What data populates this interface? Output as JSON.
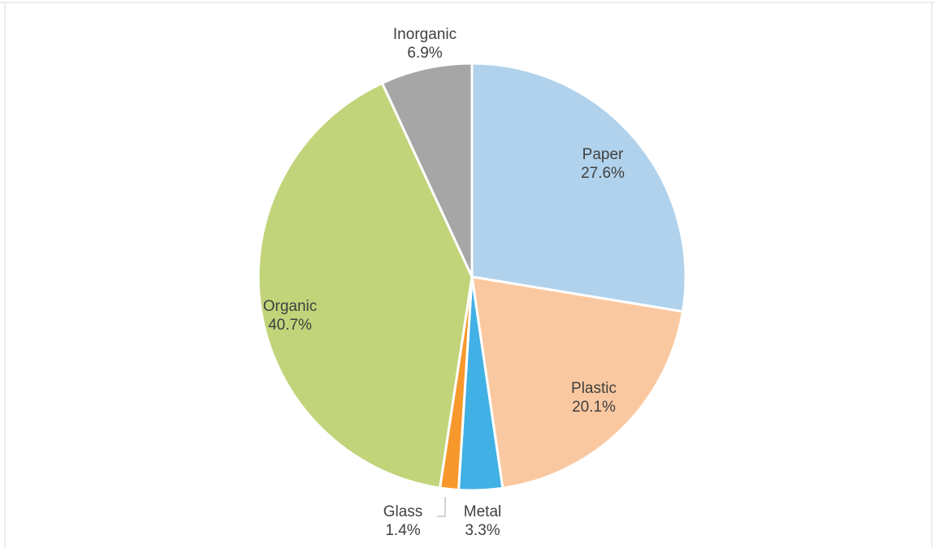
{
  "chart_data": {
    "type": "pie",
    "title": "",
    "start_angle_deg": 0,
    "direction": "clockwise",
    "slices": [
      {
        "name": "Paper",
        "value": 27.6,
        "label": "27.6%",
        "color": "#b0d2ec"
      },
      {
        "name": "Plastic",
        "value": 20.1,
        "label": "20.1%",
        "color": "#fac8a0"
      },
      {
        "name": "Metal",
        "value": 3.3,
        "label": "3.3%",
        "color": "#41b0e4"
      },
      {
        "name": "Glass",
        "value": 1.4,
        "label": "1.4%",
        "color": "#f7982c"
      },
      {
        "name": "Organic",
        "value": 40.7,
        "label": "40.7%",
        "color": "#c2d47a"
      },
      {
        "name": "Inorganic",
        "value": 6.9,
        "label": "6.9%",
        "color": "#a6a6a6"
      }
    ]
  }
}
